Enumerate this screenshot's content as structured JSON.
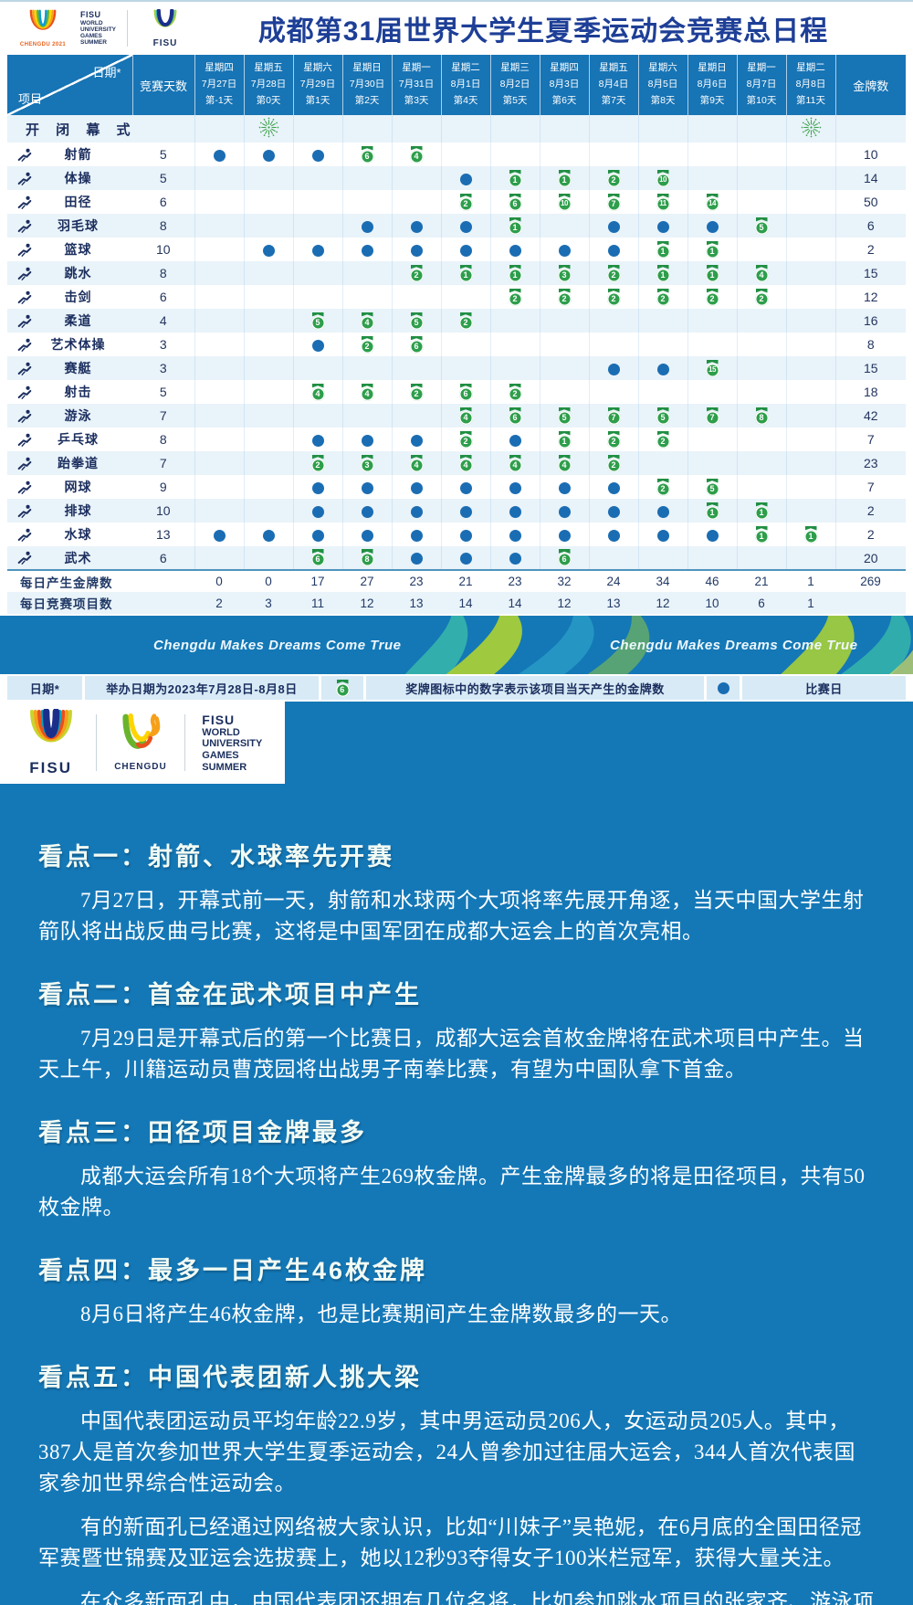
{
  "header": {
    "title": "成都第31届世界大学生夏季运动会竞赛总日程",
    "chengdu2021_caption": "CHENGDU 2021",
    "fisu_wordmark": [
      "FISU",
      "WORLD",
      "UNIVERSITY",
      "GAMES",
      "SUMMER"
    ],
    "fisu_logo_label": "FISU"
  },
  "schedule": {
    "corner_top": "日期*",
    "corner_bottom": "项目",
    "days_col_label": "竞赛天数",
    "gold_col_label": "金牌数",
    "days": [
      {
        "weekday": "星期四",
        "date": "7月27日",
        "day_no": "第-1天"
      },
      {
        "weekday": "星期五",
        "date": "7月28日",
        "day_no": "第0天"
      },
      {
        "weekday": "星期六",
        "date": "7月29日",
        "day_no": "第1天"
      },
      {
        "weekday": "星期日",
        "date": "7月30日",
        "day_no": "第2天"
      },
      {
        "weekday": "星期一",
        "date": "7月31日",
        "day_no": "第3天"
      },
      {
        "weekday": "星期二",
        "date": "8月1日",
        "day_no": "第4天"
      },
      {
        "weekday": "星期三",
        "date": "8月2日",
        "day_no": "第5天"
      },
      {
        "weekday": "星期四",
        "date": "8月3日",
        "day_no": "第6天"
      },
      {
        "weekday": "星期五",
        "date": "8月4日",
        "day_no": "第7天"
      },
      {
        "weekday": "星期六",
        "date": "8月5日",
        "day_no": "第8天"
      },
      {
        "weekday": "星期日",
        "date": "8月6日",
        "day_no": "第9天"
      },
      {
        "weekday": "星期一",
        "date": "8月7日",
        "day_no": "第10天"
      },
      {
        "weekday": "星期二",
        "date": "8月8日",
        "day_no": "第11天"
      }
    ],
    "ceremony": {
      "label": "开 闭 幕 式",
      "fireworks_day_indexes": [
        1,
        12
      ]
    },
    "sports": [
      {
        "name": "射箭",
        "icon": "archery-icon",
        "days": 5,
        "gold": 10,
        "cells": [
          "D",
          "D",
          "D",
          "6",
          "4",
          "",
          "",
          "",
          "",
          "",
          "",
          "",
          ""
        ]
      },
      {
        "name": "体操",
        "icon": "gymnastics-icon",
        "days": 5,
        "gold": 14,
        "cells": [
          "",
          "",
          "",
          "",
          "",
          "D",
          "1",
          "1",
          "2",
          "10",
          "",
          "",
          ""
        ]
      },
      {
        "name": "田径",
        "icon": "athletics-icon",
        "days": 6,
        "gold": 50,
        "cells": [
          "",
          "",
          "",
          "",
          "",
          "2",
          "6",
          "10",
          "7",
          "11",
          "14",
          "",
          ""
        ]
      },
      {
        "name": "羽毛球",
        "icon": "badminton-icon",
        "days": 8,
        "gold": 6,
        "cells": [
          "",
          "",
          "",
          "D",
          "D",
          "D",
          "1",
          "",
          "D",
          "D",
          "D",
          "5",
          ""
        ]
      },
      {
        "name": "篮球",
        "icon": "basketball-icon",
        "days": 10,
        "gold": 2,
        "cells": [
          "",
          "D",
          "D",
          "D",
          "D",
          "D",
          "D",
          "D",
          "D",
          "1",
          "1",
          "",
          ""
        ]
      },
      {
        "name": "跳水",
        "icon": "diving-icon",
        "days": 8,
        "gold": 15,
        "cells": [
          "",
          "",
          "",
          "",
          "2",
          "1",
          "1",
          "3",
          "2",
          "1",
          "1",
          "4",
          ""
        ]
      },
      {
        "name": "击剑",
        "icon": "fencing-icon",
        "days": 6,
        "gold": 12,
        "cells": [
          "",
          "",
          "",
          "",
          "",
          "",
          "2",
          "2",
          "2",
          "2",
          "2",
          "2",
          ""
        ]
      },
      {
        "name": "柔道",
        "icon": "judo-icon",
        "days": 4,
        "gold": 16,
        "cells": [
          "",
          "",
          "5",
          "4",
          "5",
          "2",
          "",
          "",
          "",
          "",
          "",
          "",
          ""
        ]
      },
      {
        "name": "艺术体操",
        "icon": "rhythmic-gymnastics-icon",
        "days": 3,
        "gold": 8,
        "cells": [
          "",
          "",
          "D",
          "2",
          "6",
          "",
          "",
          "",
          "",
          "",
          "",
          "",
          ""
        ]
      },
      {
        "name": "赛艇",
        "icon": "rowing-icon",
        "days": 3,
        "gold": 15,
        "cells": [
          "",
          "",
          "",
          "",
          "",
          "",
          "",
          "",
          "D",
          "D",
          "15",
          "",
          ""
        ]
      },
      {
        "name": "射击",
        "icon": "shooting-icon",
        "days": 5,
        "gold": 18,
        "cells": [
          "",
          "",
          "4",
          "4",
          "2",
          "6",
          "2",
          "",
          "",
          "",
          "",
          "",
          ""
        ]
      },
      {
        "name": "游泳",
        "icon": "swimming-icon",
        "days": 7,
        "gold": 42,
        "cells": [
          "",
          "",
          "",
          "",
          "",
          "4",
          "6",
          "5",
          "7",
          "5",
          "7",
          "8",
          ""
        ]
      },
      {
        "name": "乒乓球",
        "icon": "table-tennis-icon",
        "days": 8,
        "gold": 7,
        "cells": [
          "",
          "",
          "D",
          "D",
          "D",
          "2",
          "D",
          "1",
          "2",
          "2",
          "",
          "",
          ""
        ]
      },
      {
        "name": "跆拳道",
        "icon": "taekwondo-icon",
        "days": 7,
        "gold": 23,
        "cells": [
          "",
          "",
          "2",
          "3",
          "4",
          "4",
          "4",
          "4",
          "2",
          "",
          "",
          "",
          ""
        ]
      },
      {
        "name": "网球",
        "icon": "tennis-icon",
        "days": 9,
        "gold": 7,
        "cells": [
          "",
          "",
          "D",
          "D",
          "D",
          "D",
          "D",
          "D",
          "D",
          "2",
          "5",
          "",
          ""
        ]
      },
      {
        "name": "排球",
        "icon": "volleyball-icon",
        "days": 10,
        "gold": 2,
        "cells": [
          "",
          "",
          "D",
          "D",
          "D",
          "D",
          "D",
          "D",
          "D",
          "D",
          "1",
          "1",
          ""
        ]
      },
      {
        "name": "水球",
        "icon": "water-polo-icon",
        "days": 13,
        "gold": 2,
        "cells": [
          "D",
          "D",
          "D",
          "D",
          "D",
          "D",
          "D",
          "D",
          "D",
          "D",
          "D",
          "1",
          "1"
        ]
      },
      {
        "name": "武术",
        "icon": "wushu-icon",
        "days": 6,
        "gold": 20,
        "cells": [
          "",
          "",
          "6",
          "8",
          "D",
          "D",
          "D",
          "6",
          "",
          "",
          "",
          "",
          ""
        ]
      }
    ],
    "daily_gold_row": {
      "label": "每日产生金牌数",
      "values": [
        "0",
        "0",
        "17",
        "27",
        "23",
        "21",
        "23",
        "32",
        "24",
        "34",
        "46",
        "21",
        "1"
      ],
      "total": "269"
    },
    "daily_events_row": {
      "label": "每日竞赛项目数",
      "values": [
        "2",
        "3",
        "11",
        "12",
        "13",
        "14",
        "14",
        "12",
        "13",
        "12",
        "10",
        "6",
        "1"
      ],
      "total": ""
    }
  },
  "banner": {
    "slogan": "Chengdu Makes Dreams Come True"
  },
  "legend": {
    "date_label": "日期*",
    "date_text": "举办日期为2023年7月28日-8月8日",
    "medal_number": "6",
    "medal_text": "奖牌图标中的数字表示该项目当天产生的金牌数",
    "dot_text": "比赛日"
  },
  "logo_box": {
    "fisu_label": "FISU",
    "chengdu_label": "CHENGDU",
    "wordmark": [
      "FISU",
      "WORLD",
      "UNIVERSITY",
      "GAMES",
      "SUMMER"
    ]
  },
  "highlights": [
    {
      "title": "看点一：射箭、水球率先开赛",
      "paragraphs": [
        "7月27日，开幕式前一天，射箭和水球两个大项将率先展开角逐，当天中国大学生射箭队将出战反曲弓比赛，这将是中国军团在成都大运会上的首次亮相。"
      ]
    },
    {
      "title": "看点二：首金在武术项目中产生",
      "paragraphs": [
        "7月29日是开幕式后的第一个比赛日，成都大运会首枚金牌将在武术项目中产生。当天上午，川籍运动员曹茂园将出战男子南拳比赛，有望为中国队拿下首金。"
      ]
    },
    {
      "title": "看点三：田径项目金牌最多",
      "paragraphs": [
        "成都大运会所有18个大项将产生269枚金牌。产生金牌最多的将是田径项目，共有50枚金牌。"
      ]
    },
    {
      "title": "看点四：最多一日产生46枚金牌",
      "paragraphs": [
        "8月6日将产生46枚金牌，也是比赛期间产生金牌数最多的一天。"
      ]
    },
    {
      "title": "看点五：中国代表团新人挑大梁",
      "paragraphs": [
        "中国代表团运动员平均年龄22.9岁，其中男运动员206人，女运动员205人。其中，387人是首次参加世界大学生夏季运动会，24人曾参加过往届大运会，344人首次代表国家参加世界综合性运动会。",
        "有的新面孔已经通过网络被大家认识，比如“川妹子”吴艳妮，在6月底的全国田径冠军赛暨世锦赛及亚运会选拔赛上，她以12秒93夺得女子100米栏冠军，获得大量关注。",
        "在众多新面孔中，中国代表团还拥有几位名将，比如参加跳水项目的张家齐、游泳项目的张雨霏和体操项目的邹敬园、张博恒。"
      ]
    }
  ],
  "colors": {
    "accent_blue": "#1478b7",
    "header_blue": "#1774b5",
    "medal_green": "#2e9e4b",
    "dot_blue": "#1a6db3",
    "navy_text": "#1b2e5e",
    "title_navy": "#1e3f97"
  }
}
